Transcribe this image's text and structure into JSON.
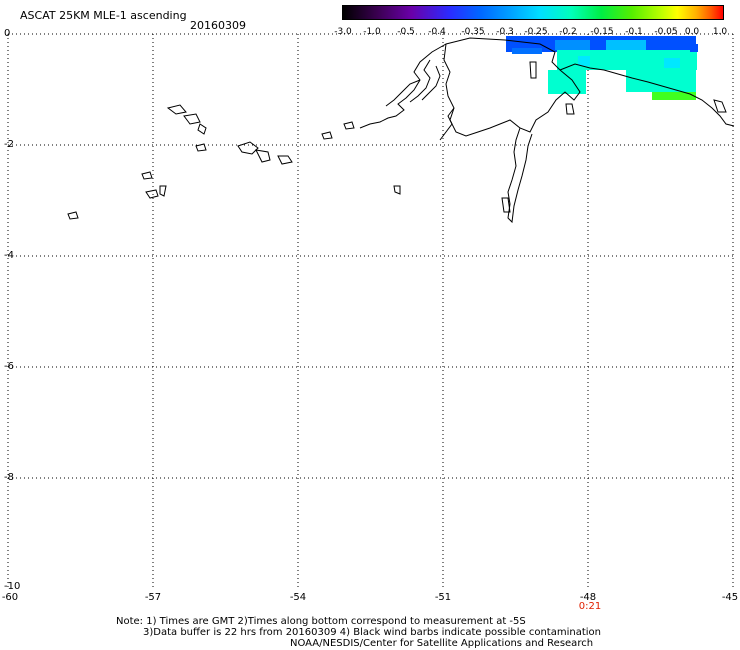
{
  "header": {
    "title": "ASCAT 25KM MLE-1 ascending",
    "date": "20160309"
  },
  "colorbar": {
    "labels": [
      "-3.0",
      "-1.0",
      "-0.5",
      "-0.4",
      "-0.35",
      "-0.3",
      "-0.25",
      "-0.2",
      "-0.15",
      "-0.1",
      "-0.05",
      "0.0",
      "1.0"
    ]
  },
  "axes": {
    "y_ticks": [
      "0",
      "-2",
      "-4",
      "-6",
      "-8",
      "-10"
    ],
    "x_ticks": [
      "-60",
      "-57",
      "-54",
      "-51",
      "-48",
      "-45"
    ],
    "time_label": "0:21"
  },
  "notes": {
    "line1": "Note: 1) Times are GMT 2)Times along bottom correspond to measurement at -5S",
    "line2": "3)Data buffer is 22 hrs from 20160309 4) Black wind barbs indicate possible contamination",
    "line3": "NOAA/NESDIS/Center for Satellite Applications and Research"
  },
  "colors": {
    "grid": "#000000",
    "swath_blue": "#0050ff",
    "swath_cyan": "#00ffd0",
    "swath_green": "#40ff20",
    "time_label": "#e02000"
  }
}
